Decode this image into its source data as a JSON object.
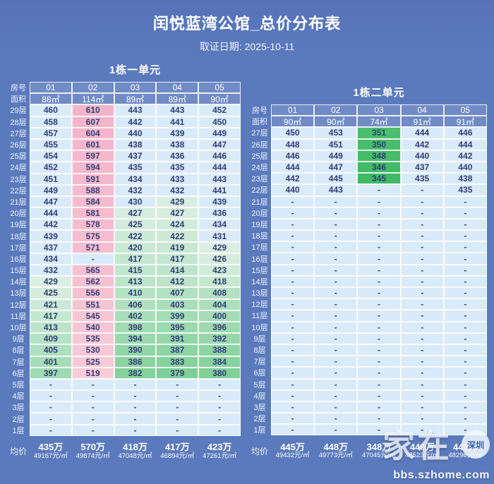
{
  "title": "闰悦蓝湾公馆_总价分布表",
  "subtitle": "取证日期: 2025-10-11",
  "dash": "-",
  "colors": {
    "background": "#5b7abd",
    "cell_text": "#333d77",
    "grid_line": "#ffffff",
    "label_text": "#ffffff"
  },
  "heatmap": {
    "empty": "#d9eaf8",
    "mid_blue": "#d9eaf8",
    "green_start": 430,
    "green_end": 345,
    "green_light": "#dcefe3",
    "green_deep": "#3fba64",
    "pink_start": 519,
    "pink_end": 610,
    "pink_light": "#f8ccd9",
    "pink_deep": "#f3b4c9"
  },
  "tables": [
    {
      "header": "1栋一单元",
      "room_label": "房号",
      "area_label": "面积",
      "avg_label": "均价",
      "columns": [
        "01",
        "02",
        "03",
        "04",
        "05"
      ],
      "areas": [
        "88㎡",
        "114㎡",
        "89㎡",
        "89㎡",
        "90㎡"
      ],
      "rows": [
        {
          "floor": "29层",
          "values": [
            460,
            610,
            443,
            443,
            452
          ]
        },
        {
          "floor": "28层",
          "values": [
            458,
            607,
            442,
            441,
            450
          ]
        },
        {
          "floor": "27层",
          "values": [
            457,
            604,
            440,
            439,
            449
          ]
        },
        {
          "floor": "26层",
          "values": [
            455,
            601,
            438,
            438,
            447
          ]
        },
        {
          "floor": "25层",
          "values": [
            454,
            597,
            437,
            436,
            446
          ]
        },
        {
          "floor": "24层",
          "values": [
            452,
            594,
            435,
            435,
            444
          ]
        },
        {
          "floor": "23层",
          "values": [
            451,
            591,
            434,
            433,
            443
          ]
        },
        {
          "floor": "22层",
          "values": [
            449,
            588,
            432,
            432,
            441
          ]
        },
        {
          "floor": "21层",
          "values": [
            447,
            584,
            430,
            429,
            439
          ]
        },
        {
          "floor": "20层",
          "values": [
            444,
            581,
            427,
            427,
            436
          ]
        },
        {
          "floor": "19层",
          "values": [
            442,
            578,
            425,
            424,
            434
          ]
        },
        {
          "floor": "18层",
          "values": [
            439,
            575,
            422,
            422,
            431
          ]
        },
        {
          "floor": "17层",
          "values": [
            437,
            571,
            420,
            419,
            429
          ]
        },
        {
          "floor": "16层",
          "values": [
            434,
            null,
            417,
            417,
            426
          ]
        },
        {
          "floor": "15层",
          "values": [
            432,
            565,
            415,
            414,
            423
          ]
        },
        {
          "floor": "14层",
          "values": [
            429,
            562,
            413,
            412,
            418
          ]
        },
        {
          "floor": "13层",
          "values": [
            425,
            556,
            410,
            407,
            408
          ]
        },
        {
          "floor": "12层",
          "values": [
            421,
            551,
            406,
            403,
            404
          ]
        },
        {
          "floor": "11层",
          "values": [
            417,
            545,
            402,
            399,
            400
          ]
        },
        {
          "floor": "10层",
          "values": [
            413,
            540,
            398,
            395,
            396
          ]
        },
        {
          "floor": "9层",
          "values": [
            409,
            535,
            394,
            391,
            392
          ]
        },
        {
          "floor": "8层",
          "values": [
            405,
            530,
            390,
            387,
            388
          ]
        },
        {
          "floor": "7层",
          "values": [
            401,
            525,
            386,
            383,
            384
          ]
        },
        {
          "floor": "6层",
          "values": [
            397,
            519,
            382,
            379,
            380
          ]
        },
        {
          "floor": "5层",
          "values": [
            null,
            null,
            null,
            null,
            null
          ]
        },
        {
          "floor": "4层",
          "values": [
            null,
            null,
            null,
            null,
            null
          ]
        },
        {
          "floor": "3层",
          "values": [
            null,
            null,
            null,
            null,
            null
          ]
        },
        {
          "floor": "2层",
          "values": [
            null,
            null,
            null,
            null,
            null
          ]
        },
        {
          "floor": "1层",
          "values": [
            null,
            null,
            null,
            null,
            null
          ]
        }
      ],
      "averages": [
        {
          "total": "435万",
          "unit": "49167元/㎡"
        },
        {
          "total": "570万",
          "unit": "49874元/㎡"
        },
        {
          "total": "418万",
          "unit": "47048元/㎡"
        },
        {
          "total": "417万",
          "unit": "46894元/㎡"
        },
        {
          "total": "423万",
          "unit": "47261元/㎡"
        }
      ]
    },
    {
      "header": "1栋二单元",
      "room_label": "房号",
      "area_label": "面积",
      "avg_label": "均价",
      "columns": [
        "01",
        "02",
        "03",
        "04",
        "05"
      ],
      "areas": [
        "90㎡",
        "90㎡",
        "74㎡",
        "91㎡",
        "91㎡"
      ],
      "rows": [
        {
          "floor": "27层",
          "values": [
            450,
            453,
            351,
            444,
            446
          ]
        },
        {
          "floor": "26层",
          "values": [
            448,
            451,
            350,
            442,
            444
          ]
        },
        {
          "floor": "25层",
          "values": [
            446,
            449,
            348,
            440,
            442
          ]
        },
        {
          "floor": "24层",
          "values": [
            444,
            447,
            346,
            437,
            440
          ]
        },
        {
          "floor": "23层",
          "values": [
            442,
            445,
            345,
            435,
            438
          ]
        },
        {
          "floor": "22层",
          "values": [
            440,
            443,
            null,
            null,
            435
          ]
        },
        {
          "floor": "21层",
          "values": [
            null,
            null,
            null,
            null,
            null
          ]
        },
        {
          "floor": "20层",
          "values": [
            null,
            null,
            null,
            null,
            null
          ]
        },
        {
          "floor": "19层",
          "values": [
            null,
            null,
            null,
            null,
            null
          ]
        },
        {
          "floor": "18层",
          "values": [
            null,
            null,
            null,
            null,
            null
          ]
        },
        {
          "floor": "17层",
          "values": [
            null,
            null,
            null,
            null,
            null
          ]
        },
        {
          "floor": "16层",
          "values": [
            null,
            null,
            null,
            null,
            null
          ]
        },
        {
          "floor": "15层",
          "values": [
            null,
            null,
            null,
            null,
            null
          ]
        },
        {
          "floor": "14层",
          "values": [
            null,
            null,
            null,
            null,
            null
          ]
        },
        {
          "floor": "13层",
          "values": [
            null,
            null,
            null,
            null,
            null
          ]
        },
        {
          "floor": "12层",
          "values": [
            null,
            null,
            null,
            null,
            null
          ]
        },
        {
          "floor": "11层",
          "values": [
            null,
            null,
            null,
            null,
            null
          ]
        },
        {
          "floor": "10层",
          "values": [
            null,
            null,
            null,
            null,
            null
          ]
        },
        {
          "floor": "9层",
          "values": [
            null,
            null,
            null,
            null,
            null
          ]
        },
        {
          "floor": "8层",
          "values": [
            null,
            null,
            null,
            null,
            null
          ]
        },
        {
          "floor": "7层",
          "values": [
            null,
            null,
            null,
            null,
            null
          ]
        },
        {
          "floor": "6层",
          "values": [
            null,
            null,
            null,
            null,
            null
          ]
        },
        {
          "floor": "5层",
          "values": [
            null,
            null,
            null,
            null,
            null
          ]
        },
        {
          "floor": "4层",
          "values": [
            null,
            null,
            null,
            null,
            null
          ]
        },
        {
          "floor": "3层",
          "values": [
            null,
            null,
            null,
            null,
            null
          ]
        },
        {
          "floor": "2层",
          "values": [
            null,
            null,
            null,
            null,
            null
          ]
        },
        {
          "floor": "1层",
          "values": [
            null,
            null,
            null,
            null,
            null
          ]
        }
      ],
      "averages": [
        {
          "total": "445万",
          "unit": "49432元/㎡"
        },
        {
          "total": "448万",
          "unit": "49773元/㎡"
        },
        {
          "total": "348万",
          "unit": "47045元/㎡"
        },
        {
          "total": "440万",
          "unit": "48523元/㎡"
        },
        {
          "total": "441万",
          "unit": "48296元/㎡"
        }
      ]
    }
  ],
  "watermark": {
    "text": "家在",
    "badge": "深圳",
    "site": "bbs.szhome.com"
  }
}
